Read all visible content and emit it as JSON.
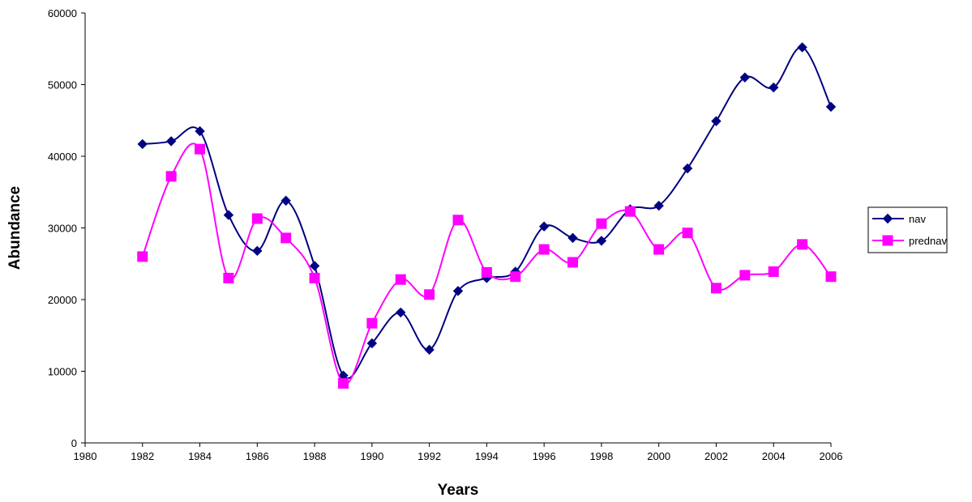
{
  "chart_data": {
    "type": "line",
    "title": "",
    "xlabel": "Years",
    "ylabel": "Abundance",
    "xlim": [
      1980,
      2006
    ],
    "ylim": [
      0,
      60000
    ],
    "x_ticks": [
      "1980",
      "1982",
      "1984",
      "1986",
      "1988",
      "1990",
      "1992",
      "1994",
      "1996",
      "1998",
      "2000",
      "2002",
      "2004",
      "2006"
    ],
    "y_ticks": [
      "0",
      "10000",
      "20000",
      "30000",
      "40000",
      "50000",
      "60000"
    ],
    "grid": false,
    "legend_position": "right",
    "smoothed": true,
    "x": [
      1982,
      1983,
      1984,
      1985,
      1986,
      1987,
      1988,
      1989,
      1990,
      1991,
      1992,
      1993,
      1994,
      1995,
      1996,
      1997,
      1998,
      1999,
      2000,
      2001,
      2002,
      2003,
      2004,
      2005,
      2006
    ],
    "series": [
      {
        "name": "nav",
        "color": "#000080",
        "marker": "diamond",
        "values": [
          41700,
          42100,
          43500,
          31800,
          26800,
          33800,
          24700,
          9400,
          13900,
          18200,
          13000,
          21200,
          23000,
          23900,
          30200,
          28600,
          28200,
          32600,
          33100,
          38300,
          44900,
          51000,
          49600,
          55200,
          46900
        ]
      },
      {
        "name": "prednav",
        "color": "#FF00FF",
        "marker": "square",
        "values": [
          26000,
          37200,
          41000,
          23000,
          31300,
          28600,
          23000,
          8300,
          16700,
          22800,
          20700,
          31100,
          23800,
          23200,
          27000,
          25200,
          30600,
          32300,
          27000,
          29300,
          21600,
          23400,
          23900,
          27700,
          23200
        ]
      }
    ]
  }
}
